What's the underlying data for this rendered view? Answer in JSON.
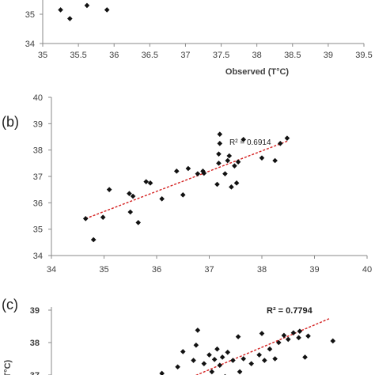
{
  "chart_data": [
    {
      "id": "a",
      "type": "scatter",
      "panel_label": "",
      "xlabel": "Observed (T°C)",
      "ylabel": "",
      "xlim": [
        35,
        39.5
      ],
      "ylim": [
        34,
        35.6
      ],
      "x_ticks": [
        "35",
        "35.5",
        "36",
        "36.5",
        "37",
        "37.5",
        "38",
        "38.5",
        "39",
        "39.5"
      ],
      "y_ticks": [
        "34",
        "35"
      ],
      "points": [
        {
          "x": 35.25,
          "y": 35.15
        },
        {
          "x": 35.38,
          "y": 34.85
        },
        {
          "x": 35.62,
          "y": 35.3
        },
        {
          "x": 35.9,
          "y": 35.15
        }
      ],
      "r2_label": "",
      "grid": false,
      "legend": "none"
    },
    {
      "id": "b",
      "type": "scatter",
      "panel_label": "(b)",
      "xlabel": "",
      "ylabel": "",
      "xlim": [
        34,
        40
      ],
      "ylim": [
        34,
        40
      ],
      "x_ticks": [
        "34",
        "35",
        "36",
        "37",
        "38",
        "39",
        "40"
      ],
      "y_ticks": [
        "34",
        "35",
        "36",
        "37",
        "38",
        "39",
        "40"
      ],
      "points": [
        {
          "x": 34.65,
          "y": 35.4
        },
        {
          "x": 34.8,
          "y": 34.6
        },
        {
          "x": 34.98,
          "y": 35.45
        },
        {
          "x": 35.1,
          "y": 36.5
        },
        {
          "x": 35.48,
          "y": 36.35
        },
        {
          "x": 35.55,
          "y": 36.25
        },
        {
          "x": 35.5,
          "y": 35.65
        },
        {
          "x": 35.65,
          "y": 35.25
        },
        {
          "x": 35.8,
          "y": 36.8
        },
        {
          "x": 35.88,
          "y": 36.75
        },
        {
          "x": 36.1,
          "y": 36.15
        },
        {
          "x": 36.38,
          "y": 37.2
        },
        {
          "x": 36.5,
          "y": 36.3
        },
        {
          "x": 36.6,
          "y": 37.3
        },
        {
          "x": 36.78,
          "y": 37.1
        },
        {
          "x": 36.88,
          "y": 37.2
        },
        {
          "x": 36.9,
          "y": 37.12
        },
        {
          "x": 37.15,
          "y": 36.7
        },
        {
          "x": 37.18,
          "y": 37.5
        },
        {
          "x": 37.18,
          "y": 37.85
        },
        {
          "x": 37.2,
          "y": 38.25
        },
        {
          "x": 37.2,
          "y": 38.6
        },
        {
          "x": 37.3,
          "y": 37.1
        },
        {
          "x": 37.35,
          "y": 37.6
        },
        {
          "x": 37.38,
          "y": 37.78
        },
        {
          "x": 37.42,
          "y": 36.6
        },
        {
          "x": 37.48,
          "y": 37.4
        },
        {
          "x": 37.52,
          "y": 36.75
        },
        {
          "x": 37.55,
          "y": 37.55
        },
        {
          "x": 37.65,
          "y": 38.4
        },
        {
          "x": 38.0,
          "y": 37.7
        },
        {
          "x": 38.25,
          "y": 37.6
        },
        {
          "x": 38.35,
          "y": 38.25
        },
        {
          "x": 38.48,
          "y": 38.45
        }
      ],
      "trendline": {
        "x": [
          34.65,
          38.5
        ],
        "y": [
          35.4,
          38.35
        ]
      },
      "r2_label": "R² = 0.6914",
      "grid": false,
      "legend": "none"
    },
    {
      "id": "c",
      "type": "scatter",
      "panel_label": "(c)",
      "xlabel": "",
      "ylabel": "(T°C)",
      "xlim": [
        34,
        40
      ],
      "ylim": [
        36.6,
        39
      ],
      "x_ticks": [],
      "y_ticks": [
        "37",
        "38",
        "39"
      ],
      "points": [
        {
          "x": 36.1,
          "y": 37.05
        },
        {
          "x": 36.4,
          "y": 37.25
        },
        {
          "x": 36.5,
          "y": 37.72
        },
        {
          "x": 36.7,
          "y": 37.45
        },
        {
          "x": 36.78,
          "y": 38.38
        },
        {
          "x": 36.75,
          "y": 37.92
        },
        {
          "x": 36.9,
          "y": 37.35
        },
        {
          "x": 37.0,
          "y": 37.62
        },
        {
          "x": 37.05,
          "y": 37.1
        },
        {
          "x": 37.1,
          "y": 37.48
        },
        {
          "x": 37.15,
          "y": 37.8
        },
        {
          "x": 37.2,
          "y": 37.3
        },
        {
          "x": 37.25,
          "y": 37.55
        },
        {
          "x": 37.3,
          "y": 36.95
        },
        {
          "x": 37.35,
          "y": 37.7
        },
        {
          "x": 37.45,
          "y": 37.45
        },
        {
          "x": 37.55,
          "y": 38.18
        },
        {
          "x": 37.58,
          "y": 37.1
        },
        {
          "x": 37.65,
          "y": 37.5
        },
        {
          "x": 37.8,
          "y": 37.35
        },
        {
          "x": 37.95,
          "y": 37.62
        },
        {
          "x": 38.0,
          "y": 38.28
        },
        {
          "x": 38.05,
          "y": 37.45
        },
        {
          "x": 38.15,
          "y": 37.8
        },
        {
          "x": 38.25,
          "y": 37.5
        },
        {
          "x": 38.32,
          "y": 38.0
        },
        {
          "x": 38.42,
          "y": 38.22
        },
        {
          "x": 38.5,
          "y": 38.1
        },
        {
          "x": 38.6,
          "y": 38.3
        },
        {
          "x": 38.7,
          "y": 38.15
        },
        {
          "x": 38.72,
          "y": 38.35
        },
        {
          "x": 38.82,
          "y": 37.55
        },
        {
          "x": 38.88,
          "y": 38.2
        },
        {
          "x": 39.35,
          "y": 38.05
        }
      ],
      "trendline": {
        "x": [
          36.4,
          39.3
        ],
        "y": [
          36.75,
          38.75
        ]
      },
      "r2_label": "R² = 0.7794",
      "grid": false,
      "legend": "none"
    }
  ]
}
